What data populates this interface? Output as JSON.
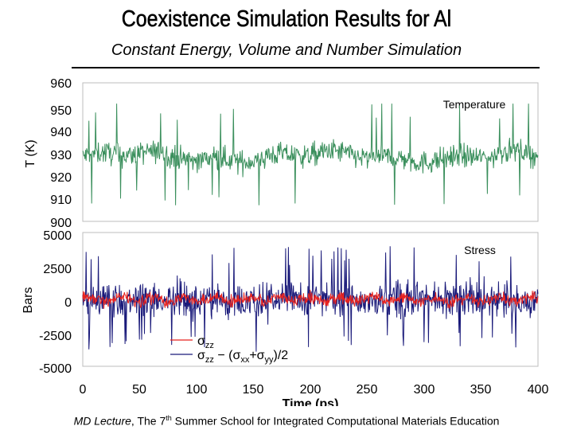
{
  "header": {
    "title": "Coexistence Simulation Results for Al",
    "subtitle": "Constant Energy, Volume and Number Simulation"
  },
  "footer": {
    "lecture": "MD Lecture",
    "prefix": ", The 7",
    "sup": "th",
    "rest": " Summer School for Integrated Computational Materials Education"
  },
  "chart_data": [
    {
      "type": "line",
      "title": "Temperature",
      "ylabel": "T (K)",
      "ylim": [
        900,
        960
      ],
      "yticks": [
        960,
        950,
        940,
        930,
        920,
        910,
        900
      ],
      "xlim": [
        0,
        400
      ],
      "series": [
        {
          "name": "Temperature",
          "color": "#3a8f5c",
          "mean": 928,
          "amplitude": 9,
          "spike_max": 951,
          "spike_min": 907
        }
      ]
    },
    {
      "type": "line",
      "title": "Stress",
      "xlabel": "Time (ps)",
      "ylabel": "Bars",
      "ylim": [
        -5000,
        5000
      ],
      "yticks": [
        5000,
        2500,
        0,
        -2500,
        -5000
      ],
      "xlim": [
        0,
        400
      ],
      "xticks": [
        0,
        50,
        100,
        150,
        200,
        250,
        300,
        350,
        400
      ],
      "series": [
        {
          "name": "σzz − (σxx+σyy)/2",
          "legend_main": "σ",
          "legend_sub": "zz",
          "legend_rest": " − (σ",
          "legend_sub2": "xx",
          "legend_plus": "+σ",
          "legend_sub3": "yy",
          "legend_end": ")/2",
          "color": "#1a1a7a",
          "mean": 0,
          "amplitude": 1300
        },
        {
          "name": "σzz",
          "legend_main": "σ",
          "legend_sub": "zz",
          "color": "#e8231f",
          "mean": 0,
          "amplitude": 450
        }
      ]
    }
  ]
}
